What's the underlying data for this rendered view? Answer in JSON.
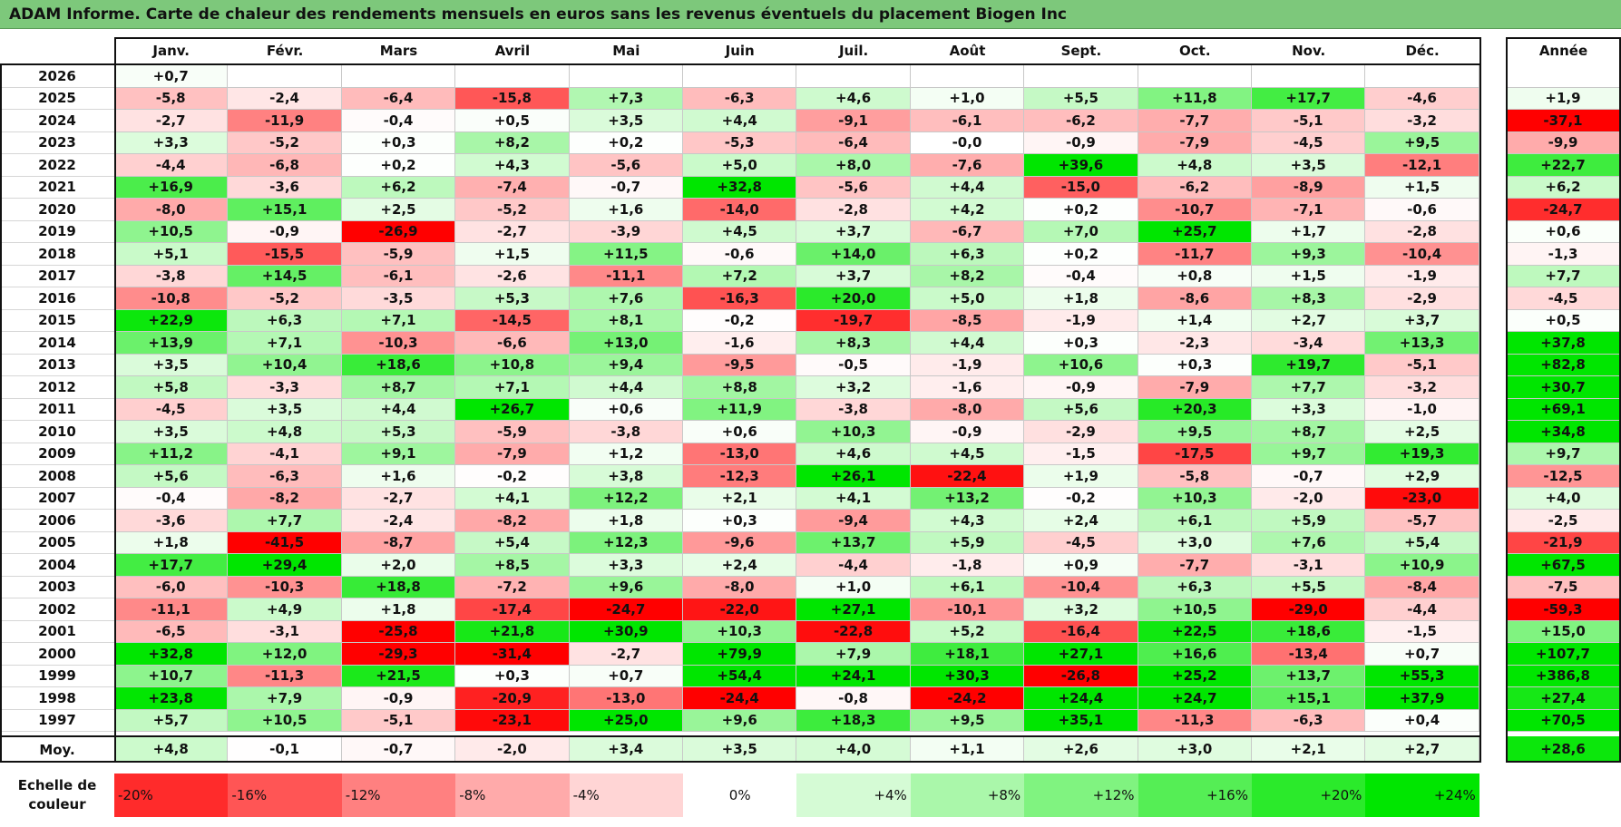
{
  "title": "ADAM Informe. Carte de chaleur des rendements mensuels en euros sans les revenus éventuels du placement Biogen Inc",
  "chart_data": {
    "type": "heatmap",
    "title": "ADAM Informe. Carte de chaleur des rendements mensuels en euros sans les revenus éventuels du placement Biogen Inc",
    "columns": [
      "Janv.",
      "Févr.",
      "Mars",
      "Avril",
      "Mai",
      "Juin",
      "Juil.",
      "Août",
      "Sept.",
      "Oct.",
      "Nov.",
      "Déc."
    ],
    "year_header": "Année",
    "rows": [
      {
        "year": "2026",
        "values": [
          "+0,7",
          "",
          "",
          "",
          "",
          "",
          "",
          "",
          "",
          "",
          "",
          ""
        ],
        "annual": ""
      },
      {
        "year": "2025",
        "values": [
          "-5,8",
          "-2,4",
          "-6,4",
          "-15,8",
          "+7,3",
          "-6,3",
          "+4,6",
          "+1,0",
          "+5,5",
          "+11,8",
          "+17,7",
          "-4,6"
        ],
        "annual": "+1,9"
      },
      {
        "year": "2024",
        "values": [
          "-2,7",
          "-11,9",
          "-0,4",
          "+0,5",
          "+3,5",
          "+4,4",
          "-9,1",
          "-6,1",
          "-6,2",
          "-7,7",
          "-5,1",
          "-3,2"
        ],
        "annual": "-37,1"
      },
      {
        "year": "2023",
        "values": [
          "+3,3",
          "-5,2",
          "+0,3",
          "+8,2",
          "+0,2",
          "-5,3",
          "-6,4",
          "-0,0",
          "-0,9",
          "-7,9",
          "-4,5",
          "+9,5"
        ],
        "annual": "-9,9"
      },
      {
        "year": "2022",
        "values": [
          "-4,4",
          "-6,8",
          "+0,2",
          "+4,3",
          "-5,6",
          "+5,0",
          "+8,0",
          "-7,6",
          "+39,6",
          "+4,8",
          "+3,5",
          "-12,1"
        ],
        "annual": "+22,7"
      },
      {
        "year": "2021",
        "values": [
          "+16,9",
          "-3,6",
          "+6,2",
          "-7,4",
          "-0,7",
          "+32,8",
          "-5,6",
          "+4,4",
          "-15,0",
          "-6,2",
          "-8,9",
          "+1,5"
        ],
        "annual": "+6,2"
      },
      {
        "year": "2020",
        "values": [
          "-8,0",
          "+15,1",
          "+2,5",
          "-5,2",
          "+1,6",
          "-14,0",
          "-2,8",
          "+4,2",
          "+0,2",
          "-10,7",
          "-7,1",
          "-0,6"
        ],
        "annual": "-24,7"
      },
      {
        "year": "2019",
        "values": [
          "+10,5",
          "-0,9",
          "-26,9",
          "-2,7",
          "-3,9",
          "+4,5",
          "+3,7",
          "-6,7",
          "+7,0",
          "+25,7",
          "+1,7",
          "-2,8"
        ],
        "annual": "+0,6"
      },
      {
        "year": "2018",
        "values": [
          "+5,1",
          "-15,5",
          "-5,9",
          "+1,5",
          "+11,5",
          "-0,6",
          "+14,0",
          "+6,3",
          "+0,2",
          "-11,7",
          "+9,3",
          "-10,4"
        ],
        "annual": "-1,3"
      },
      {
        "year": "2017",
        "values": [
          "-3,8",
          "+14,5",
          "-6,1",
          "-2,6",
          "-11,1",
          "+7,2",
          "+3,7",
          "+8,2",
          "-0,4",
          "+0,8",
          "+1,5",
          "-1,9"
        ],
        "annual": "+7,7"
      },
      {
        "year": "2016",
        "values": [
          "-10,8",
          "-5,2",
          "-3,5",
          "+5,3",
          "+7,6",
          "-16,3",
          "+20,0",
          "+5,0",
          "+1,8",
          "-8,6",
          "+8,3",
          "-2,9"
        ],
        "annual": "-4,5"
      },
      {
        "year": "2015",
        "values": [
          "+22,9",
          "+6,3",
          "+7,1",
          "-14,5",
          "+8,1",
          "-0,2",
          "-19,7",
          "-8,5",
          "-1,9",
          "+1,4",
          "+2,7",
          "+3,7"
        ],
        "annual": "+0,5"
      },
      {
        "year": "2014",
        "values": [
          "+13,9",
          "+7,1",
          "-10,3",
          "-6,6",
          "+13,0",
          "-1,6",
          "+8,3",
          "+4,4",
          "+0,3",
          "-2,3",
          "-3,4",
          "+13,3"
        ],
        "annual": "+37,8"
      },
      {
        "year": "2013",
        "values": [
          "+3,5",
          "+10,4",
          "+18,6",
          "+10,8",
          "+9,4",
          "-9,5",
          "-0,5",
          "-1,9",
          "+10,6",
          "+0,3",
          "+19,7",
          "-5,1"
        ],
        "annual": "+82,8"
      },
      {
        "year": "2012",
        "values": [
          "+5,8",
          "-3,3",
          "+8,7",
          "+7,1",
          "+4,4",
          "+8,8",
          "+3,2",
          "-1,6",
          "-0,9",
          "-7,9",
          "+7,7",
          "-3,2"
        ],
        "annual": "+30,7"
      },
      {
        "year": "2011",
        "values": [
          "-4,5",
          "+3,5",
          "+4,4",
          "+26,7",
          "+0,6",
          "+11,9",
          "-3,8",
          "-8,0",
          "+5,6",
          "+20,3",
          "+3,3",
          "-1,0"
        ],
        "annual": "+69,1"
      },
      {
        "year": "2010",
        "values": [
          "+3,5",
          "+4,8",
          "+5,3",
          "-5,9",
          "-3,8",
          "+0,6",
          "+10,3",
          "-0,9",
          "-2,9",
          "+9,5",
          "+8,7",
          "+2,5"
        ],
        "annual": "+34,8"
      },
      {
        "year": "2009",
        "values": [
          "+11,2",
          "-4,1",
          "+9,1",
          "-7,9",
          "+1,2",
          "-13,0",
          "+4,6",
          "+4,5",
          "-1,5",
          "-17,5",
          "+9,7",
          "+19,3"
        ],
        "annual": "+9,7"
      },
      {
        "year": "2008",
        "values": [
          "+5,6",
          "-6,3",
          "+1,6",
          "-0,2",
          "+3,8",
          "-12,3",
          "+26,1",
          "-22,4",
          "+1,9",
          "-5,8",
          "-0,7",
          "+2,9"
        ],
        "annual": "-12,5"
      },
      {
        "year": "2007",
        "values": [
          "-0,4",
          "-8,2",
          "-2,7",
          "+4,1",
          "+12,2",
          "+2,1",
          "+4,1",
          "+13,2",
          "-0,2",
          "+10,3",
          "-2,0",
          "-23,0"
        ],
        "annual": "+4,0"
      },
      {
        "year": "2006",
        "values": [
          "-3,6",
          "+7,7",
          "-2,4",
          "-8,2",
          "+1,8",
          "+0,3",
          "-9,4",
          "+4,3",
          "+2,4",
          "+6,1",
          "+5,9",
          "-5,7"
        ],
        "annual": "-2,5"
      },
      {
        "year": "2005",
        "values": [
          "+1,8",
          "-41,5",
          "-8,7",
          "+5,4",
          "+12,3",
          "-9,6",
          "+13,7",
          "+5,9",
          "-4,5",
          "+3,0",
          "+7,6",
          "+5,4"
        ],
        "annual": "-21,9"
      },
      {
        "year": "2004",
        "values": [
          "+17,7",
          "+29,4",
          "+2,0",
          "+8,5",
          "+3,3",
          "+2,4",
          "-4,4",
          "-1,8",
          "+0,9",
          "-7,7",
          "-3,1",
          "+10,9"
        ],
        "annual": "+67,5"
      },
      {
        "year": "2003",
        "values": [
          "-6,0",
          "-10,3",
          "+18,8",
          "-7,2",
          "+9,6",
          "-8,0",
          "+1,0",
          "+6,1",
          "-10,4",
          "+6,3",
          "+5,5",
          "-8,4"
        ],
        "annual": "-7,5"
      },
      {
        "year": "2002",
        "values": [
          "-11,1",
          "+4,9",
          "+1,8",
          "-17,4",
          "-24,7",
          "-22,0",
          "+27,1",
          "-10,1",
          "+3,2",
          "+10,5",
          "-29,0",
          "-4,4"
        ],
        "annual": "-59,3"
      },
      {
        "year": "2001",
        "values": [
          "-6,5",
          "-3,1",
          "-25,8",
          "+21,8",
          "+30,9",
          "+10,3",
          "-22,8",
          "+5,2",
          "-16,4",
          "+22,5",
          "+18,6",
          "-1,5"
        ],
        "annual": "+15,0"
      },
      {
        "year": "2000",
        "values": [
          "+32,8",
          "+12,0",
          "-29,3",
          "-31,4",
          "-2,7",
          "+79,9",
          "+7,9",
          "+18,1",
          "+27,1",
          "+16,6",
          "-13,4",
          "+0,7"
        ],
        "annual": "+107,7"
      },
      {
        "year": "1999",
        "values": [
          "+10,7",
          "-11,3",
          "+21,5",
          "+0,3",
          "+0,7",
          "+54,4",
          "+24,1",
          "+30,3",
          "-26,8",
          "+25,2",
          "+13,7",
          "+55,3"
        ],
        "annual": "+386,8"
      },
      {
        "year": "1998",
        "values": [
          "+23,8",
          "+7,9",
          "-0,9",
          "-20,9",
          "-13,0",
          "-24,4",
          "-0,8",
          "-24,2",
          "+24,4",
          "+24,7",
          "+15,1",
          "+37,9"
        ],
        "annual": "+27,4"
      },
      {
        "year": "1997",
        "values": [
          "+5,7",
          "+10,5",
          "-5,1",
          "-23,1",
          "+25,0",
          "+9,6",
          "+18,3",
          "+9,5",
          "+35,1",
          "-11,3",
          "-6,3",
          "+0,4"
        ],
        "annual": "+70,5"
      }
    ],
    "average": {
      "label": "Moy.",
      "values": [
        "+4,8",
        "-0,1",
        "-0,7",
        "-2,0",
        "+3,4",
        "+3,5",
        "+4,0",
        "+1,1",
        "+2,6",
        "+3,0",
        "+2,1",
        "+2,7"
      ],
      "annual": "+28,6"
    },
    "color_scale": {
      "label_line1": "Echelle de",
      "label_line2": "couleur",
      "stops": [
        "-20%",
        "-16%",
        "-12%",
        "-8%",
        "-4%",
        "0%",
        "+4%",
        "+8%",
        "+12%",
        "+16%",
        "+20%",
        "+24%"
      ],
      "stop_values": [
        -20,
        -16,
        -12,
        -8,
        -4,
        0,
        4,
        8,
        12,
        16,
        20,
        24
      ],
      "colors": {
        "negative": "#ff0000",
        "neutral": "#ffffff",
        "positive": "#00e600"
      }
    }
  }
}
